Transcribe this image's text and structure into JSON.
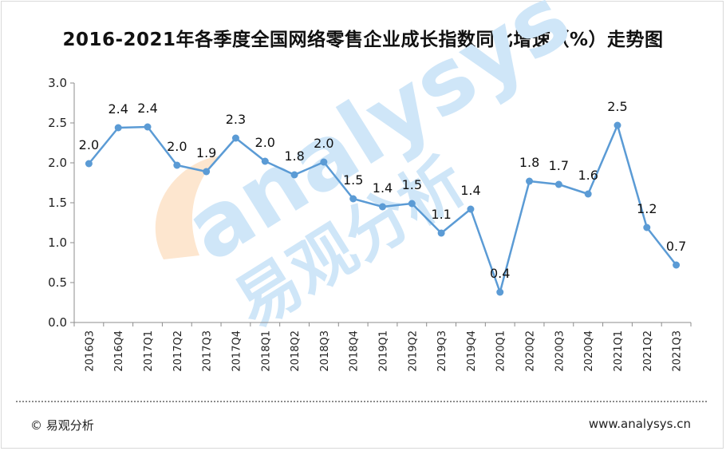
{
  "title": "2016-2021年各季度全国网络零售企业成长指数同比增速（%）走势图",
  "watermark": {
    "brand": "analysys",
    "cn": "易观分析"
  },
  "footer": {
    "copyright": "©  易观分析",
    "url": "www.analysys.cn"
  },
  "colors": {
    "line": "#5b9bd5",
    "marker": "#5b9bd5",
    "watermark_blue": "#cfe6f8",
    "watermark_orange": "#fde6cf"
  },
  "chart_data": {
    "type": "line",
    "categories": [
      "2016Q3",
      "2016Q4",
      "2017Q1",
      "2017Q2",
      "2017Q3",
      "2017Q4",
      "2018Q1",
      "2018Q2",
      "2018Q3",
      "2018Q4",
      "2019Q1",
      "2019Q2",
      "2019Q3",
      "2019Q4",
      "2020Q1",
      "2020Q2",
      "2020Q3",
      "2020Q4",
      "2021Q1",
      "2021Q2",
      "2021Q3"
    ],
    "values": [
      1.99,
      2.44,
      2.45,
      1.97,
      1.89,
      2.31,
      2.02,
      1.85,
      2.01,
      1.55,
      1.45,
      1.49,
      1.12,
      1.42,
      0.38,
      1.77,
      1.73,
      1.61,
      2.47,
      1.19,
      0.72
    ],
    "labels": [
      "2.0",
      "2.4",
      "2.4",
      "2.0",
      "1.9",
      "2.3",
      "2.0",
      "1.8",
      "2.0",
      "1.5",
      "1.4",
      "1.5",
      "1.1",
      "1.4",
      "0.4",
      "1.8",
      "1.7",
      "1.6",
      "2.5",
      "1.2",
      "0.7"
    ],
    "yticks": [
      "0.0",
      "0.5",
      "1.0",
      "1.5",
      "2.0",
      "2.5",
      "3.0"
    ],
    "ylim": [
      0,
      3
    ],
    "grid": false,
    "legend": "none"
  }
}
